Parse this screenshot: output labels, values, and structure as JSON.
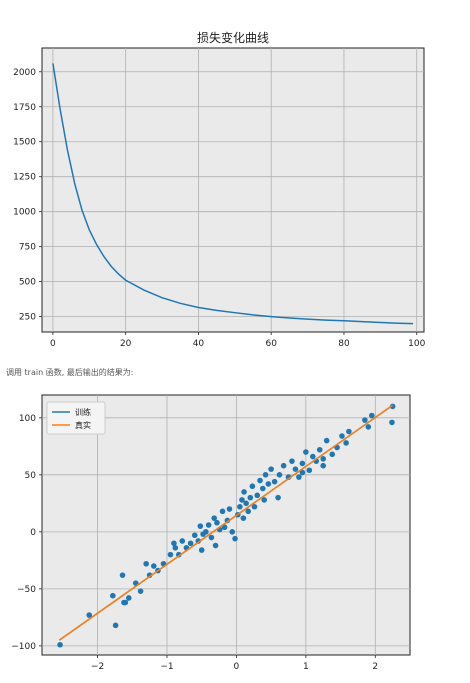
{
  "caption": "调用 train 函数, 最后输出的结果为:",
  "colors": {
    "blue": "#1f77b4",
    "orange": "#ff7f0e",
    "axes_bg": "#eaeaea",
    "grid": "#b0b0b0"
  },
  "chart_data": [
    {
      "type": "line",
      "title": "损失变化曲线",
      "xlabel": "",
      "ylabel": "",
      "xlim": [
        -3,
        102
      ],
      "ylim": [
        140,
        2170
      ],
      "xticks": [
        0,
        20,
        40,
        60,
        80,
        100
      ],
      "yticks": [
        250,
        500,
        750,
        1000,
        1250,
        1500,
        1750,
        2000
      ],
      "grid": true,
      "series": [
        {
          "color": "#1f77b4",
          "x": [
            0,
            2,
            4,
            6,
            8,
            10,
            12,
            14,
            16,
            18,
            20,
            25,
            30,
            35,
            40,
            45,
            50,
            55,
            60,
            65,
            70,
            75,
            80,
            85,
            90,
            95,
            99
          ],
          "y": [
            2060,
            1730,
            1440,
            1200,
            1010,
            870,
            765,
            680,
            610,
            555,
            510,
            440,
            385,
            345,
            315,
            295,
            278,
            262,
            250,
            240,
            232,
            225,
            220,
            214,
            208,
            203,
            200
          ]
        }
      ]
    },
    {
      "type": "scatter",
      "title": "",
      "xlabel": "",
      "ylabel": "",
      "xlim": [
        -2.8,
        2.5
      ],
      "ylim": [
        -108,
        120
      ],
      "xticks": [
        -2,
        -1,
        0,
        1,
        2
      ],
      "yticks": [
        -100,
        -50,
        0,
        50,
        100
      ],
      "grid": true,
      "legend": {
        "placement": "top-left",
        "entries": [
          "训练",
          "真实"
        ]
      },
      "lines": [
        {
          "name": "训练",
          "color": "#1f77b4",
          "x": [
            -2.55,
            2.25
          ],
          "y": [
            -95,
            111
          ]
        },
        {
          "name": "真实",
          "color": "#ff7f0e",
          "x": [
            -2.55,
            2.25
          ],
          "y": [
            -95,
            111
          ]
        }
      ],
      "points": {
        "color": "#1f77b4",
        "x": [
          -2.54,
          -2.12,
          -1.74,
          -1.78,
          -1.64,
          -1.62,
          -1.55,
          -1.45,
          -1.38,
          -1.25,
          -1.19,
          -1.13,
          -1.05,
          -0.95,
          -0.88,
          -0.83,
          -0.78,
          -0.72,
          -0.66,
          -0.6,
          -0.55,
          -0.52,
          -0.48,
          -0.44,
          -0.4,
          -0.36,
          -0.32,
          -0.28,
          -0.24,
          -0.2,
          -0.17,
          -0.13,
          -0.1,
          -0.06,
          -0.02,
          0.02,
          0.05,
          0.08,
          0.11,
          0.14,
          0.17,
          0.2,
          0.23,
          0.26,
          0.3,
          0.34,
          0.38,
          0.42,
          0.46,
          0.5,
          0.55,
          0.62,
          0.68,
          0.75,
          0.8,
          0.85,
          0.9,
          0.95,
          1.0,
          1.05,
          1.1,
          1.15,
          1.2,
          1.25,
          1.3,
          1.38,
          1.45,
          1.52,
          1.58,
          1.62,
          1.85,
          1.95,
          2.25,
          2.24,
          -1.3,
          -0.9,
          -0.5,
          0.1,
          0.4,
          0.95,
          1.25,
          1.9,
          -1.6,
          -0.3,
          0.6
        ],
        "y": [
          -99,
          -73,
          -82,
          -56,
          -38,
          -62,
          -58,
          -45,
          -52,
          -38,
          -30,
          -34,
          -28,
          -20,
          -14,
          -20,
          -8,
          -14,
          -10,
          -3,
          -8,
          5,
          -2,
          0,
          6,
          -5,
          12,
          8,
          2,
          18,
          4,
          10,
          20,
          0,
          -6,
          15,
          22,
          28,
          35,
          25,
          18,
          30,
          40,
          22,
          32,
          45,
          38,
          50,
          42,
          55,
          44,
          50,
          58,
          48,
          62,
          55,
          48,
          60,
          70,
          54,
          66,
          62,
          72,
          58,
          80,
          68,
          74,
          84,
          78,
          88,
          98,
          102,
          110,
          96,
          -28,
          -10,
          -16,
          12,
          28,
          52,
          64,
          92,
          -62,
          -12,
          30
        ]
      }
    }
  ]
}
